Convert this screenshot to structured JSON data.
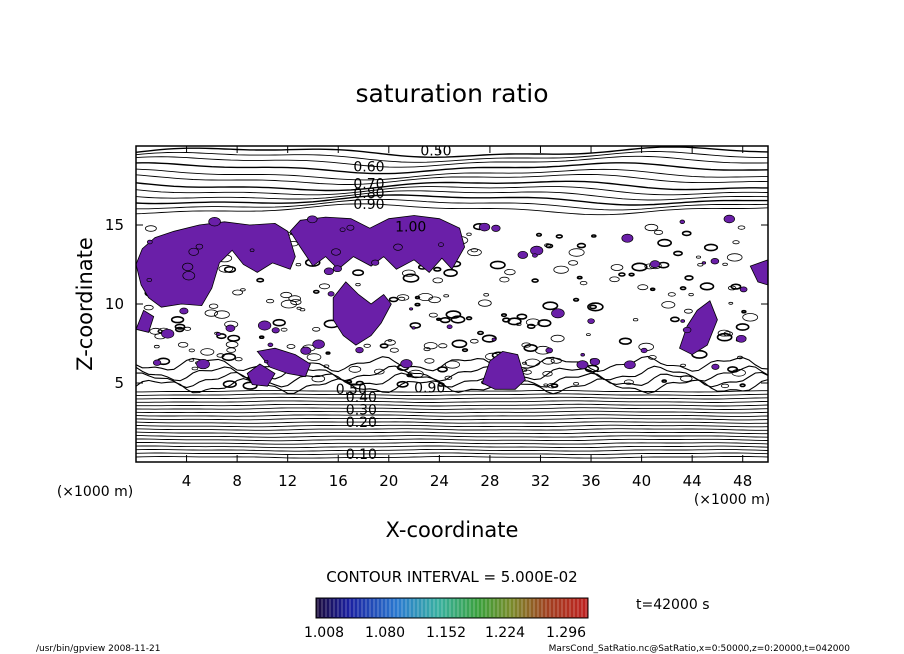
{
  "chart_data": {
    "type": "contour",
    "title": "saturation ratio",
    "xlabel": "X-coordinate",
    "ylabel": "Z-coordinate",
    "x_unit": "(×1000 m)",
    "y_unit": "(×1000 m)",
    "xlim": [
      0,
      50
    ],
    "ylim": [
      0,
      20
    ],
    "x_ticks": [
      4,
      8,
      12,
      16,
      20,
      24,
      28,
      32,
      36,
      40,
      44,
      48
    ],
    "y_ticks": [
      5,
      10,
      15
    ],
    "contour_interval_text": "CONTOUR INTERVAL = 5.000E-02",
    "time_label": "t=42000 s",
    "colorbar_ticks": [
      "1.008",
      "1.080",
      "1.152",
      "1.224",
      "1.296"
    ],
    "contour_labels": [
      "0.50",
      "0.60",
      "0.70",
      "0.80",
      "0.90",
      "1.00",
      "0.90",
      "0.50",
      "0.40",
      "0.30",
      "0.20",
      "0.10"
    ],
    "shaded_threshold": 1.008,
    "shade_color": "#6a1fa8",
    "grid": false
  },
  "footer": {
    "left": "/usr/bin/gpview  2008-11-21",
    "right": "MarsCond_SatRatio.nc@SatRatio,x=0:50000,z=0:20000,t=042000"
  }
}
